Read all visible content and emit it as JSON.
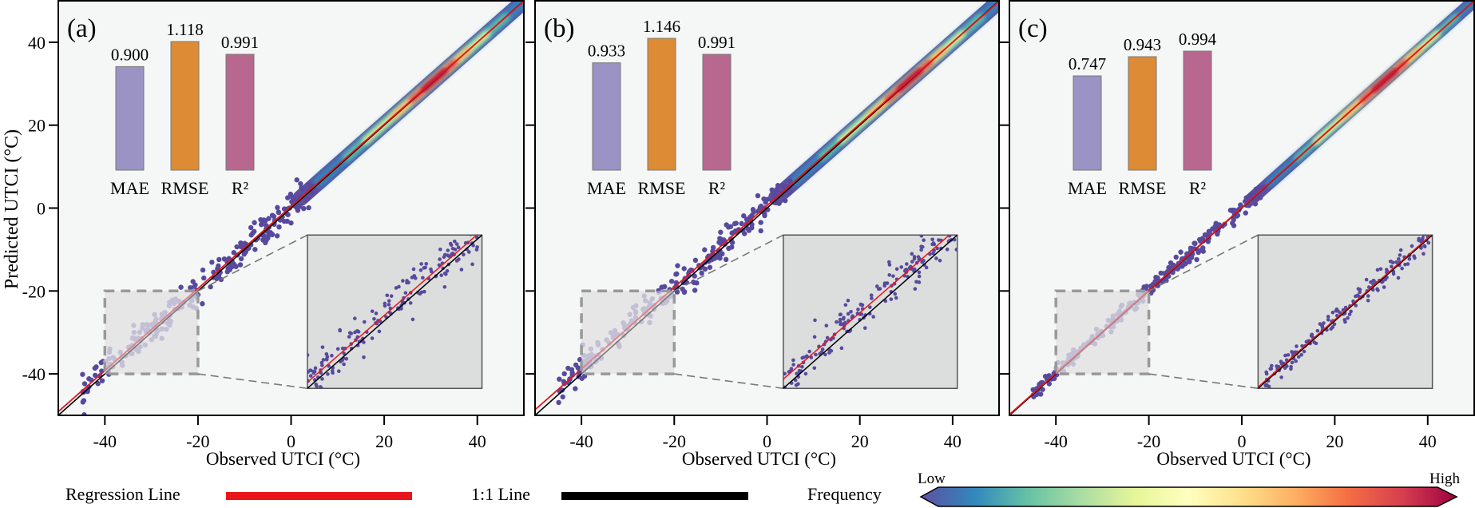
{
  "figure": {
    "y_axis_label": "Predicted UTCI (°C)",
    "x_axis_label": "Observed UTCI (°C)"
  },
  "legend": {
    "regression_label": "Regression Line",
    "regression_color": "#e8151b",
    "identity_label": "1:1 Line",
    "identity_color": "#000000",
    "frequency_label": "Frequency",
    "colorbar_low": "Low",
    "colorbar_high": "High",
    "colormap": [
      "#5e4fa2",
      "#3288bd",
      "#66c2a5",
      "#abdda4",
      "#e6f598",
      "#ffffbf",
      "#fee08b",
      "#fdae61",
      "#f46d43",
      "#d53e4f",
      "#9e0142"
    ]
  },
  "chart_data": [
    {
      "type": "scatter",
      "panel_label": "(a)",
      "xlabel": "Observed UTCI (°C)",
      "ylabel": "Predicted UTCI (°C)",
      "xlim": [
        -50,
        50
      ],
      "ylim": [
        -50,
        50
      ],
      "xticks": [
        -40,
        -20,
        0,
        20,
        40
      ],
      "yticks": [
        -40,
        -20,
        0,
        20,
        40
      ],
      "regression": {
        "slope": 0.99,
        "intercept": 0.4
      },
      "density_peak": [
        31,
        31
      ],
      "inset": {
        "source_x": [
          -40,
          -20
        ],
        "source_y": [
          -40,
          -20
        ]
      },
      "metrics": {
        "categories": [
          "MAE",
          "RMSE",
          "R²"
        ],
        "values": [
          0.9,
          1.118,
          0.991
        ],
        "labels": [
          "0.900",
          "1.118",
          "0.991"
        ],
        "colors": [
          "#9b93c4",
          "#de8b35",
          "#b8688e"
        ]
      }
    },
    {
      "type": "scatter",
      "panel_label": "(b)",
      "xlabel": "Observed UTCI (°C)",
      "ylabel": "",
      "xlim": [
        -50,
        50
      ],
      "ylim": [
        -50,
        50
      ],
      "xticks": [
        -40,
        -20,
        0,
        20,
        40
      ],
      "yticks": [
        -40,
        -20,
        0,
        20,
        40
      ],
      "regression": {
        "slope": 0.985,
        "intercept": 0.6
      },
      "density_peak": [
        31,
        31
      ],
      "inset": {
        "source_x": [
          -40,
          -20
        ],
        "source_y": [
          -40,
          -20
        ]
      },
      "metrics": {
        "categories": [
          "MAE",
          "RMSE",
          "R²"
        ],
        "values": [
          0.933,
          1.146,
          0.991
        ],
        "labels": [
          "0.933",
          "1.146",
          "0.991"
        ],
        "colors": [
          "#9b93c4",
          "#de8b35",
          "#b8688e"
        ]
      }
    },
    {
      "type": "scatter",
      "panel_label": "(c)",
      "xlabel": "Observed UTCI (°C)",
      "ylabel": "",
      "xlim": [
        -50,
        50
      ],
      "ylim": [
        -50,
        50
      ],
      "xticks": [
        -40,
        -20,
        0,
        20,
        40
      ],
      "yticks": [
        -40,
        -20,
        0,
        20,
        40
      ],
      "regression": {
        "slope": 0.998,
        "intercept": 0.1
      },
      "density_peak": [
        31,
        31
      ],
      "inset": {
        "source_x": [
          -40,
          -20
        ],
        "source_y": [
          -40,
          -20
        ]
      },
      "metrics": {
        "categories": [
          "MAE",
          "RMSE",
          "R²"
        ],
        "values": [
          0.747,
          0.943,
          0.994
        ],
        "labels": [
          "0.747",
          "0.943",
          "0.994"
        ],
        "colors": [
          "#9b93c4",
          "#de8b35",
          "#b8688e"
        ]
      }
    }
  ]
}
